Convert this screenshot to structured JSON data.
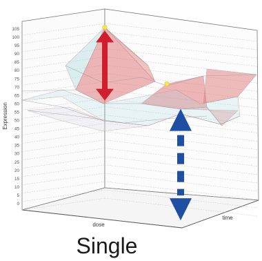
{
  "caption": "Single",
  "colors": {
    "grid": "#c8c8c8",
    "surface_red": "#e07a7a",
    "surface_cyan": "#9fd6de",
    "arrow_red": "#d01e2e",
    "arrow_blue": "#1e4fa3",
    "peak_marker": "#f4e84c"
  },
  "chart_data": {
    "type": "surface3d",
    "title": "",
    "ylabel": "Expression",
    "xlabel": "dose",
    "zlabel": "time",
    "ylim": [
      0,
      105
    ],
    "yticks": [
      "0",
      "5",
      "10",
      "15",
      "20",
      "25",
      "30",
      "35",
      "40",
      "45",
      "50",
      "55",
      "60",
      "65",
      "70",
      "75",
      "80",
      "85",
      "90",
      "95",
      "100",
      "105"
    ],
    "grid": true,
    "peaks": [
      {
        "value": 106,
        "marker": "peak_marker"
      },
      {
        "value": 72,
        "marker": "peak_marker"
      }
    ],
    "annotations": [
      {
        "type": "double-arrow",
        "style": "solid",
        "color": "arrow_red",
        "from": 62,
        "to": 104
      },
      {
        "type": "double-arrow",
        "style": "dashed",
        "color": "arrow_blue",
        "from": -10,
        "to": 57
      }
    ]
  }
}
